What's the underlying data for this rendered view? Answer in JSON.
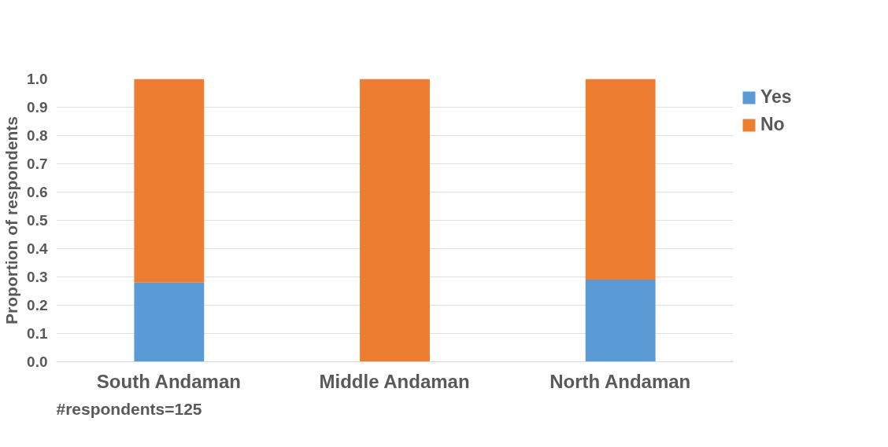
{
  "chart_data": {
    "type": "bar",
    "stacked": true,
    "ylabel": "Proportion of respondents",
    "categories": [
      "South Andaman",
      "Middle Andaman",
      "North Andaman"
    ],
    "series": [
      {
        "name": "Yes",
        "color": "#5b9bd5",
        "values": [
          0.28,
          0,
          0.29
        ]
      },
      {
        "name": "No",
        "color": "#ed7d31",
        "values": [
          0.72,
          1.0,
          0.71
        ]
      }
    ],
    "ylim": [
      0,
      1.0
    ],
    "yticks": [
      {
        "value": 0,
        "label": "0.0"
      },
      0.1,
      0.2,
      0.3,
      0.4,
      0.5,
      0.6,
      0.7,
      0.8,
      0.9,
      {
        "value": 1,
        "label": "1.0"
      }
    ],
    "grid": "y",
    "legend": "top right",
    "annotations": [
      "#respondents=125"
    ]
  }
}
